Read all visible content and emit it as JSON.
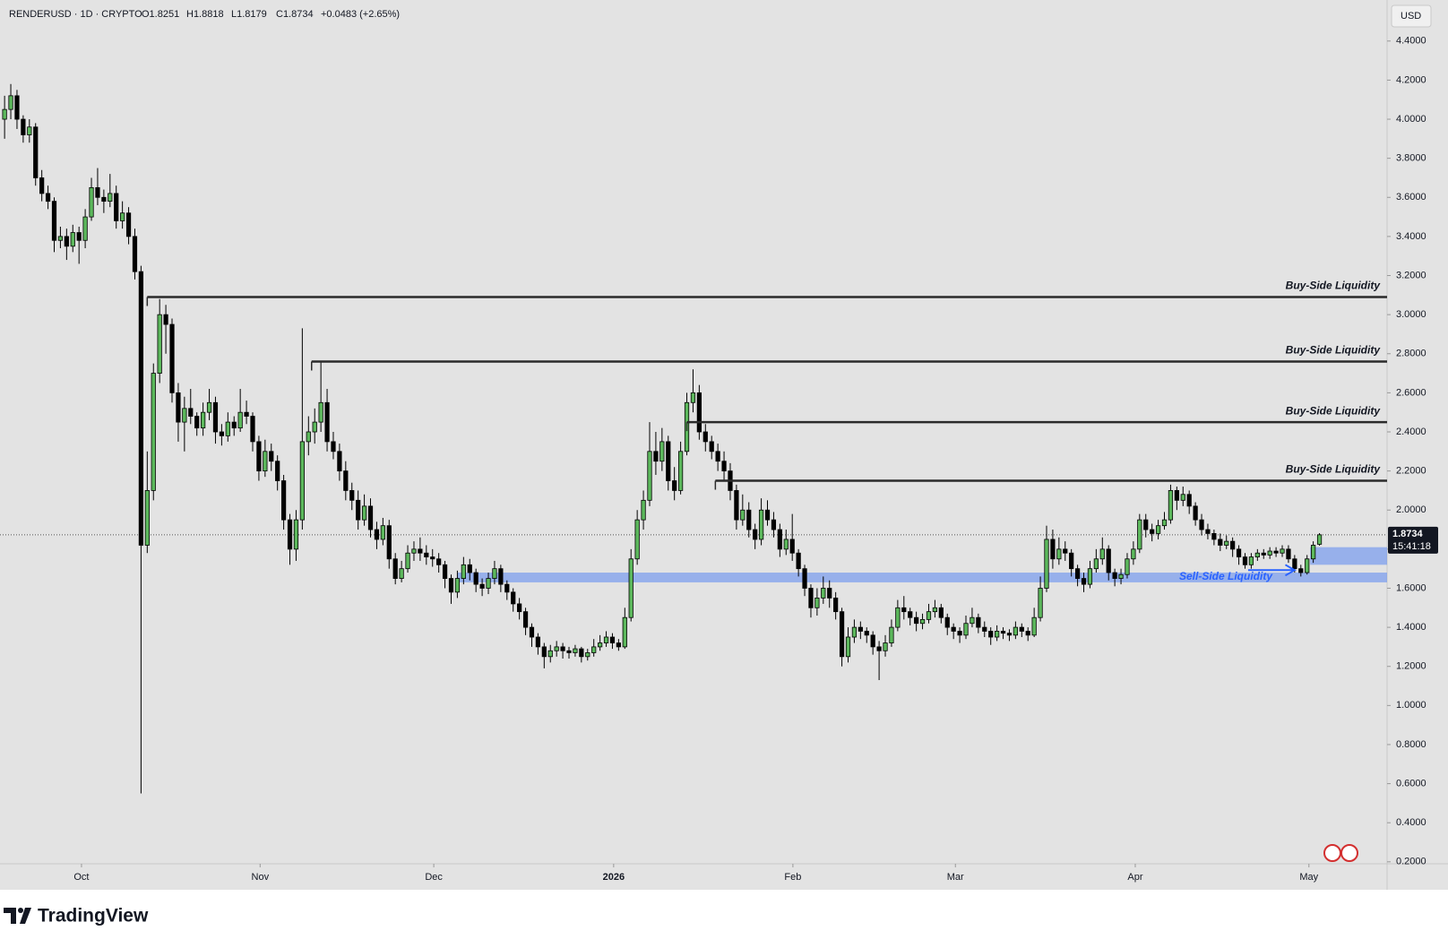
{
  "header": {
    "symbol": "RENDERUSD · 1D · CRYPTO",
    "open": "O1.8251",
    "high": "H1.8818",
    "low": "L1.8179",
    "close": "C1.8734",
    "change": "+0.0483 (+2.65%)"
  },
  "brand": "TradingView",
  "chart_data": {
    "type": "candlestick",
    "currency": "USD",
    "up_color": "#5cb85c",
    "down_color": "#000000",
    "xlim": [
      -0.74,
      222.9
    ],
    "ylim": [
      0.19,
      4.61
    ],
    "xticks": [
      {
        "value": 12.4,
        "label": "Oct"
      },
      {
        "value": 41.2,
        "label": "Nov"
      },
      {
        "value": 69.2,
        "label": "Dec"
      },
      {
        "value": 98.2,
        "label": "2026"
      },
      {
        "value": 127.1,
        "label": "Feb"
      },
      {
        "value": 153.3,
        "label": "Mar"
      },
      {
        "value": 182.3,
        "label": "Apr"
      },
      {
        "value": 210.3,
        "label": "May"
      }
    ],
    "yticks": [
      {
        "value": 0.2,
        "label": "0.2000"
      },
      {
        "value": 0.4,
        "label": "0.4000"
      },
      {
        "value": 0.6,
        "label": "0.6000"
      },
      {
        "value": 0.8,
        "label": "0.8000"
      },
      {
        "value": 1.0,
        "label": "1.0000"
      },
      {
        "value": 1.2,
        "label": "1.2000"
      },
      {
        "value": 1.4,
        "label": "1.4000"
      },
      {
        "value": 1.6,
        "label": "1.6000"
      },
      {
        "value": 1.8,
        "label": "1.8000"
      },
      {
        "value": 2.0,
        "label": "2.0000"
      },
      {
        "value": 2.2,
        "label": "2.2000"
      },
      {
        "value": 2.4,
        "label": "2.4000"
      },
      {
        "value": 2.6,
        "label": "2.6000"
      },
      {
        "value": 2.8,
        "label": "2.8000"
      },
      {
        "value": 3.0,
        "label": "3.0000"
      },
      {
        "value": 3.2,
        "label": "3.2000"
      },
      {
        "value": 3.4,
        "label": "3.4000"
      },
      {
        "value": 3.6,
        "label": "3.6000"
      },
      {
        "value": 3.8,
        "label": "3.8000"
      },
      {
        "value": 4.0,
        "label": "4.0000"
      },
      {
        "value": 4.2,
        "label": "4.2000"
      },
      {
        "value": 4.4,
        "label": "4.4000"
      }
    ],
    "last": 1.8734,
    "countdown": "15:41:18",
    "levels": [
      {
        "label": "Buy-Side Liquidity",
        "value": 3.09,
        "start": 23
      },
      {
        "label": "Buy-Side Liquidity",
        "value": 2.76,
        "start": 49.5
      },
      {
        "label": "Buy-Side Liquidity",
        "value": 2.45,
        "start": 110
      },
      {
        "label": "Buy-Side Liquidity",
        "value": 2.15,
        "start": 114.6
      }
    ],
    "zones": [
      {
        "label": "Sell-Side Liquidity",
        "low": 1.63,
        "high": 1.68,
        "start": 73
      },
      {
        "low": 1.72,
        "high": 1.81,
        "start": 210.5
      }
    ],
    "ohlc": [
      [
        4.0,
        4.12,
        3.9,
        4.05
      ],
      [
        4.05,
        4.18,
        4.0,
        4.12
      ],
      [
        4.12,
        4.15,
        3.95,
        4.0
      ],
      [
        4.0,
        4.02,
        3.88,
        3.92
      ],
      [
        3.92,
        4.0,
        3.88,
        3.96
      ],
      [
        3.96,
        3.98,
        3.66,
        3.7
      ],
      [
        3.7,
        3.74,
        3.58,
        3.62
      ],
      [
        3.62,
        3.66,
        3.54,
        3.58
      ],
      [
        3.58,
        3.6,
        3.32,
        3.38
      ],
      [
        3.38,
        3.45,
        3.34,
        3.4
      ],
      [
        3.4,
        3.44,
        3.28,
        3.35
      ],
      [
        3.35,
        3.46,
        3.32,
        3.42
      ],
      [
        3.42,
        3.45,
        3.26,
        3.38
      ],
      [
        3.38,
        3.54,
        3.34,
        3.5
      ],
      [
        3.5,
        3.7,
        3.48,
        3.65
      ],
      [
        3.65,
        3.75,
        3.56,
        3.6
      ],
      [
        3.6,
        3.64,
        3.52,
        3.58
      ],
      [
        3.58,
        3.72,
        3.55,
        3.62
      ],
      [
        3.62,
        3.66,
        3.44,
        3.48
      ],
      [
        3.48,
        3.58,
        3.44,
        3.52
      ],
      [
        3.52,
        3.55,
        3.36,
        3.4
      ],
      [
        3.4,
        3.44,
        3.18,
        3.22
      ],
      [
        3.22,
        3.25,
        0.55,
        1.82
      ],
      [
        1.82,
        2.3,
        1.78,
        2.1
      ],
      [
        2.1,
        2.75,
        2.05,
        2.7
      ],
      [
        2.7,
        3.08,
        2.65,
        3.0
      ],
      [
        3.0,
        3.05,
        2.8,
        2.95
      ],
      [
        2.95,
        2.98,
        2.55,
        2.6
      ],
      [
        2.6,
        2.65,
        2.35,
        2.45
      ],
      [
        2.45,
        2.58,
        2.3,
        2.52
      ],
      [
        2.52,
        2.62,
        2.44,
        2.48
      ],
      [
        2.48,
        2.5,
        2.38,
        2.42
      ],
      [
        2.42,
        2.55,
        2.38,
        2.5
      ],
      [
        2.5,
        2.62,
        2.46,
        2.55
      ],
      [
        2.55,
        2.58,
        2.34,
        2.4
      ],
      [
        2.4,
        2.44,
        2.33,
        2.38
      ],
      [
        2.38,
        2.5,
        2.35,
        2.45
      ],
      [
        2.45,
        2.48,
        2.38,
        2.42
      ],
      [
        2.42,
        2.62,
        2.4,
        2.5
      ],
      [
        2.5,
        2.56,
        2.44,
        2.48
      ],
      [
        2.48,
        2.5,
        2.3,
        2.35
      ],
      [
        2.35,
        2.38,
        2.15,
        2.2
      ],
      [
        2.2,
        2.36,
        2.17,
        2.3
      ],
      [
        2.3,
        2.34,
        2.2,
        2.25
      ],
      [
        2.25,
        2.28,
        2.1,
        2.15
      ],
      [
        2.15,
        2.18,
        1.9,
        1.95
      ],
      [
        1.95,
        1.98,
        1.72,
        1.8
      ],
      [
        1.8,
        2.0,
        1.74,
        1.95
      ],
      [
        1.95,
        2.93,
        1.9,
        2.35
      ],
      [
        2.35,
        2.48,
        2.28,
        2.4
      ],
      [
        2.4,
        2.52,
        2.34,
        2.45
      ],
      [
        2.45,
        2.76,
        2.4,
        2.55
      ],
      [
        2.55,
        2.62,
        2.3,
        2.35
      ],
      [
        2.35,
        2.4,
        2.26,
        2.3
      ],
      [
        2.3,
        2.34,
        2.15,
        2.2
      ],
      [
        2.2,
        2.25,
        2.05,
        2.1
      ],
      [
        2.1,
        2.14,
        2.0,
        2.05
      ],
      [
        2.05,
        2.1,
        1.9,
        1.95
      ],
      [
        1.95,
        2.08,
        1.92,
        2.02
      ],
      [
        2.02,
        2.06,
        1.86,
        1.9
      ],
      [
        1.9,
        1.94,
        1.8,
        1.85
      ],
      [
        1.85,
        1.96,
        1.82,
        1.92
      ],
      [
        1.92,
        1.95,
        1.7,
        1.75
      ],
      [
        1.75,
        1.78,
        1.62,
        1.65
      ],
      [
        1.65,
        1.74,
        1.63,
        1.7
      ],
      [
        1.7,
        1.82,
        1.68,
        1.78
      ],
      [
        1.78,
        1.84,
        1.74,
        1.8
      ],
      [
        1.8,
        1.86,
        1.74,
        1.78
      ],
      [
        1.78,
        1.82,
        1.72,
        1.76
      ],
      [
        1.76,
        1.8,
        1.71,
        1.75
      ],
      [
        1.75,
        1.78,
        1.68,
        1.72
      ],
      [
        1.72,
        1.74,
        1.6,
        1.65
      ],
      [
        1.65,
        1.67,
        1.52,
        1.58
      ],
      [
        1.58,
        1.69,
        1.55,
        1.65
      ],
      [
        1.65,
        1.76,
        1.62,
        1.72
      ],
      [
        1.72,
        1.75,
        1.64,
        1.68
      ],
      [
        1.68,
        1.7,
        1.58,
        1.62
      ],
      [
        1.62,
        1.65,
        1.56,
        1.6
      ],
      [
        1.6,
        1.68,
        1.57,
        1.65
      ],
      [
        1.65,
        1.74,
        1.62,
        1.7
      ],
      [
        1.7,
        1.72,
        1.58,
        1.62
      ],
      [
        1.62,
        1.64,
        1.54,
        1.58
      ],
      [
        1.58,
        1.6,
        1.48,
        1.52
      ],
      [
        1.52,
        1.55,
        1.44,
        1.48
      ],
      [
        1.48,
        1.5,
        1.36,
        1.4
      ],
      [
        1.4,
        1.42,
        1.3,
        1.35
      ],
      [
        1.35,
        1.37,
        1.26,
        1.3
      ],
      [
        1.3,
        1.32,
        1.19,
        1.25
      ],
      [
        1.25,
        1.31,
        1.22,
        1.28
      ],
      [
        1.28,
        1.33,
        1.25,
        1.3
      ],
      [
        1.3,
        1.32,
        1.24,
        1.28
      ],
      [
        1.28,
        1.3,
        1.24,
        1.27
      ],
      [
        1.27,
        1.31,
        1.25,
        1.29
      ],
      [
        1.29,
        1.3,
        1.22,
        1.25
      ],
      [
        1.25,
        1.29,
        1.23,
        1.27
      ],
      [
        1.27,
        1.34,
        1.25,
        1.3
      ],
      [
        1.3,
        1.36,
        1.28,
        1.32
      ],
      [
        1.32,
        1.38,
        1.3,
        1.35
      ],
      [
        1.35,
        1.37,
        1.29,
        1.32
      ],
      [
        1.32,
        1.34,
        1.28,
        1.3
      ],
      [
        1.3,
        1.5,
        1.29,
        1.45
      ],
      [
        1.45,
        1.8,
        1.43,
        1.75
      ],
      [
        1.75,
        2.0,
        1.72,
        1.95
      ],
      [
        1.95,
        2.1,
        1.9,
        2.05
      ],
      [
        2.05,
        2.45,
        2.02,
        2.3
      ],
      [
        2.3,
        2.4,
        2.18,
        2.25
      ],
      [
        2.25,
        2.42,
        2.2,
        2.35
      ],
      [
        2.35,
        2.38,
        2.1,
        2.15
      ],
      [
        2.15,
        2.22,
        2.05,
        2.1
      ],
      [
        2.1,
        2.35,
        2.08,
        2.3
      ],
      [
        2.3,
        2.6,
        2.28,
        2.55
      ],
      [
        2.55,
        2.72,
        2.5,
        2.6
      ],
      [
        2.6,
        2.64,
        2.36,
        2.4
      ],
      [
        2.4,
        2.44,
        2.3,
        2.35
      ],
      [
        2.35,
        2.38,
        2.26,
        2.3
      ],
      [
        2.3,
        2.34,
        2.2,
        2.25
      ],
      [
        2.25,
        2.3,
        2.15,
        2.2
      ],
      [
        2.2,
        2.24,
        2.05,
        2.1
      ],
      [
        2.1,
        2.13,
        1.9,
        1.95
      ],
      [
        1.95,
        2.08,
        1.92,
        2.0
      ],
      [
        2.0,
        2.04,
        1.86,
        1.9
      ],
      [
        1.9,
        1.93,
        1.8,
        1.85
      ],
      [
        1.85,
        2.06,
        1.82,
        2.0
      ],
      [
        2.0,
        2.05,
        1.92,
        1.95
      ],
      [
        1.95,
        1.99,
        1.86,
        1.9
      ],
      [
        1.9,
        1.93,
        1.76,
        1.8
      ],
      [
        1.8,
        1.9,
        1.77,
        1.85
      ],
      [
        1.85,
        1.98,
        1.74,
        1.78
      ],
      [
        1.78,
        1.8,
        1.66,
        1.7
      ],
      [
        1.7,
        1.72,
        1.56,
        1.6
      ],
      [
        1.6,
        1.62,
        1.45,
        1.5
      ],
      [
        1.5,
        1.6,
        1.46,
        1.55
      ],
      [
        1.55,
        1.66,
        1.52,
        1.6
      ],
      [
        1.6,
        1.64,
        1.5,
        1.55
      ],
      [
        1.55,
        1.58,
        1.44,
        1.48
      ],
      [
        1.48,
        1.5,
        1.2,
        1.25
      ],
      [
        1.25,
        1.4,
        1.22,
        1.35
      ],
      [
        1.35,
        1.44,
        1.32,
        1.4
      ],
      [
        1.4,
        1.43,
        1.34,
        1.38
      ],
      [
        1.38,
        1.4,
        1.32,
        1.36
      ],
      [
        1.36,
        1.38,
        1.26,
        1.3
      ],
      [
        1.3,
        1.33,
        1.13,
        1.28
      ],
      [
        1.28,
        1.36,
        1.25,
        1.32
      ],
      [
        1.32,
        1.44,
        1.3,
        1.4
      ],
      [
        1.4,
        1.54,
        1.38,
        1.5
      ],
      [
        1.5,
        1.56,
        1.44,
        1.48
      ],
      [
        1.48,
        1.5,
        1.41,
        1.45
      ],
      [
        1.45,
        1.48,
        1.38,
        1.42
      ],
      [
        1.42,
        1.47,
        1.39,
        1.44
      ],
      [
        1.44,
        1.52,
        1.42,
        1.48
      ],
      [
        1.48,
        1.54,
        1.45,
        1.5
      ],
      [
        1.5,
        1.52,
        1.42,
        1.45
      ],
      [
        1.45,
        1.47,
        1.36,
        1.4
      ],
      [
        1.4,
        1.42,
        1.34,
        1.38
      ],
      [
        1.38,
        1.4,
        1.32,
        1.36
      ],
      [
        1.36,
        1.46,
        1.34,
        1.42
      ],
      [
        1.42,
        1.5,
        1.4,
        1.45
      ],
      [
        1.45,
        1.47,
        1.37,
        1.4
      ],
      [
        1.4,
        1.43,
        1.35,
        1.38
      ],
      [
        1.38,
        1.4,
        1.31,
        1.35
      ],
      [
        1.35,
        1.41,
        1.33,
        1.38
      ],
      [
        1.38,
        1.4,
        1.34,
        1.37
      ],
      [
        1.37,
        1.39,
        1.33,
        1.36
      ],
      [
        1.36,
        1.43,
        1.34,
        1.4
      ],
      [
        1.4,
        1.42,
        1.35,
        1.38
      ],
      [
        1.38,
        1.4,
        1.33,
        1.36
      ],
      [
        1.36,
        1.5,
        1.35,
        1.45
      ],
      [
        1.45,
        1.66,
        1.43,
        1.6
      ],
      [
        1.6,
        1.92,
        1.58,
        1.85
      ],
      [
        1.85,
        1.9,
        1.7,
        1.75
      ],
      [
        1.75,
        1.86,
        1.72,
        1.8
      ],
      [
        1.8,
        1.84,
        1.74,
        1.78
      ],
      [
        1.78,
        1.8,
        1.66,
        1.7
      ],
      [
        1.7,
        1.72,
        1.61,
        1.65
      ],
      [
        1.65,
        1.68,
        1.58,
        1.62
      ],
      [
        1.62,
        1.74,
        1.6,
        1.7
      ],
      [
        1.7,
        1.8,
        1.68,
        1.75
      ],
      [
        1.75,
        1.86,
        1.72,
        1.8
      ],
      [
        1.8,
        1.82,
        1.64,
        1.68
      ],
      [
        1.68,
        1.7,
        1.61,
        1.65
      ],
      [
        1.65,
        1.7,
        1.62,
        1.67
      ],
      [
        1.67,
        1.78,
        1.65,
        1.75
      ],
      [
        1.75,
        1.84,
        1.72,
        1.8
      ],
      [
        1.8,
        1.98,
        1.78,
        1.95
      ],
      [
        1.95,
        1.98,
        1.86,
        1.9
      ],
      [
        1.9,
        1.93,
        1.84,
        1.88
      ],
      [
        1.88,
        1.95,
        1.85,
        1.92
      ],
      [
        1.92,
        1.99,
        1.9,
        1.95
      ],
      [
        1.95,
        2.13,
        1.93,
        2.1
      ],
      [
        2.1,
        2.12,
        2.0,
        2.05
      ],
      [
        2.05,
        2.12,
        2.02,
        2.08
      ],
      [
        2.08,
        2.1,
        1.98,
        2.02
      ],
      [
        2.02,
        2.04,
        1.92,
        1.95
      ],
      [
        1.95,
        1.98,
        1.87,
        1.9
      ],
      [
        1.9,
        1.93,
        1.85,
        1.88
      ],
      [
        1.88,
        1.9,
        1.82,
        1.85
      ],
      [
        1.85,
        1.88,
        1.79,
        1.82
      ],
      [
        1.82,
        1.87,
        1.8,
        1.84
      ],
      [
        1.84,
        1.86,
        1.76,
        1.8
      ],
      [
        1.8,
        1.82,
        1.72,
        1.76
      ],
      [
        1.76,
        1.78,
        1.7,
        1.72
      ],
      [
        1.72,
        1.78,
        1.7,
        1.76
      ],
      [
        1.76,
        1.8,
        1.74,
        1.78
      ],
      [
        1.78,
        1.8,
        1.75,
        1.77
      ],
      [
        1.77,
        1.81,
        1.75,
        1.79
      ],
      [
        1.79,
        1.81,
        1.76,
        1.78
      ],
      [
        1.78,
        1.82,
        1.76,
        1.8
      ],
      [
        1.8,
        1.82,
        1.73,
        1.75
      ],
      [
        1.75,
        1.77,
        1.68,
        1.7
      ],
      [
        1.7,
        1.72,
        1.66,
        1.68
      ],
      [
        1.68,
        1.77,
        1.67,
        1.75
      ],
      [
        1.75,
        1.84,
        1.73,
        1.82
      ],
      [
        1.8251,
        1.8818,
        1.8179,
        1.8734
      ]
    ]
  }
}
